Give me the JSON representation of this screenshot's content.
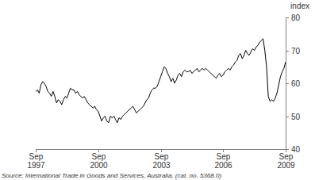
{
  "chart_data": {
    "type": "line",
    "y_label": "index",
    "source": "Source: International Trade in Goods and Services, Australia, (cat. no. 5368.0)",
    "categories": [
      "Sep 1997",
      null,
      null,
      null,
      null,
      null,
      null,
      null,
      null,
      null,
      null,
      null,
      null,
      null,
      null,
      null,
      null,
      null,
      null,
      null,
      null,
      null,
      null,
      null,
      null,
      null,
      null,
      null,
      null,
      null,
      null,
      null,
      null,
      null,
      null,
      null,
      "Sep 2000",
      null,
      null,
      null,
      null,
      null,
      null,
      null,
      null,
      null,
      null,
      null,
      null,
      null,
      null,
      null,
      null,
      null,
      null,
      null,
      null,
      null,
      null,
      null,
      null,
      null,
      null,
      null,
      null,
      null,
      null,
      null,
      null,
      null,
      null,
      null,
      "Sep 2003",
      null,
      null,
      null,
      null,
      null,
      null,
      null,
      null,
      null,
      null,
      null,
      null,
      null,
      null,
      null,
      null,
      null,
      null,
      null,
      null,
      null,
      null,
      null,
      null,
      null,
      null,
      null,
      null,
      null,
      null,
      null,
      null,
      null,
      null,
      null,
      "Sep 2006",
      null,
      null,
      null,
      null,
      null,
      null,
      null,
      null,
      null,
      null,
      null,
      null,
      null,
      null,
      null,
      null,
      null,
      null,
      null,
      null,
      null,
      null,
      null,
      null,
      null,
      null,
      null,
      null,
      null,
      null,
      null,
      null,
      null,
      null,
      null,
      "Sep 2009"
    ],
    "series": [
      {
        "name": "index",
        "color": "#000000",
        "values": [
          57.5,
          58,
          57,
          59.5,
          60.5,
          60,
          59,
          57.5,
          57,
          56,
          57.5,
          56,
          54,
          55,
          54.5,
          53.5,
          55,
          56,
          55.5,
          57,
          58.5,
          58,
          58,
          57,
          57.5,
          56.5,
          56,
          55.5,
          56,
          55,
          54,
          53.5,
          53,
          52.5,
          53,
          52,
          51.5,
          50,
          48.5,
          49.5,
          50,
          48.5,
          48,
          50,
          49.5,
          50,
          49,
          48,
          49.5,
          49,
          50,
          50.5,
          51,
          51.5,
          52,
          52.5,
          53,
          52,
          51,
          51.5,
          52,
          52.5,
          53,
          54,
          55,
          55.5,
          57,
          58,
          58.5,
          58.5,
          59,
          60.5,
          62,
          63.5,
          65,
          64.5,
          63,
          62,
          60.5,
          61.5,
          60,
          61,
          62.5,
          63,
          62,
          63.5,
          64,
          63.5,
          63.5,
          64,
          63,
          63.5,
          64,
          64.5,
          63.5,
          64,
          64.5,
          64,
          64.5,
          64,
          63.5,
          63,
          62.5,
          62,
          61.5,
          62.5,
          63,
          62,
          62.5,
          63.5,
          64,
          64.5,
          64,
          65,
          65.5,
          66.5,
          67,
          68.5,
          69,
          67.5,
          68.5,
          70,
          69,
          68.5,
          69.5,
          70.5,
          70,
          71,
          71.5,
          72.5,
          73,
          73.5,
          70,
          65,
          56,
          54.5,
          55,
          54.5,
          55.5,
          57,
          59.5,
          62,
          63.5,
          64.5,
          66.5
        ]
      }
    ],
    "ylim": [
      40,
      80
    ],
    "yticks": [
      40,
      50,
      60,
      70,
      80
    ],
    "grid": false
  }
}
